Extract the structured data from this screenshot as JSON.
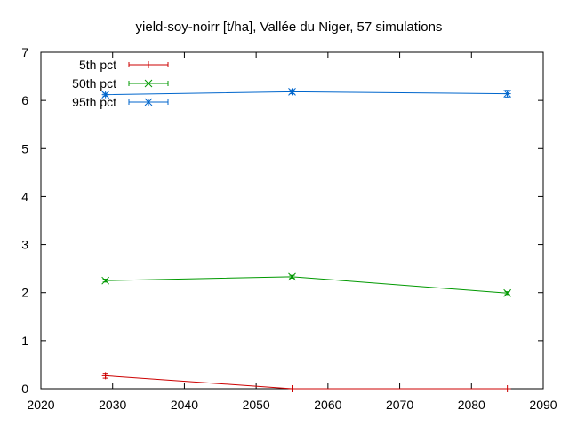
{
  "chart_data": {
    "type": "line",
    "title": "yield-soy-noirr [t/ha], Vallée du Niger, 57 simulations",
    "xlabel": "",
    "ylabel": "",
    "xlim": [
      2020,
      2090
    ],
    "ylim": [
      0,
      7
    ],
    "xticks": [
      2020,
      2030,
      2040,
      2050,
      2060,
      2070,
      2080,
      2090
    ],
    "yticks": [
      0,
      1,
      2,
      3,
      4,
      5,
      6,
      7
    ],
    "grid": false,
    "legend_position": "top-left",
    "series": [
      {
        "name": "5th pct",
        "color": "#cc0000",
        "marker": "plus",
        "points": [
          {
            "x": 2029,
            "y": 0.27,
            "err": 0.05
          },
          {
            "x": 2055,
            "y": 0.0,
            "err": 0.0
          },
          {
            "x": 2085,
            "y": 0.0,
            "err": 0.0
          }
        ]
      },
      {
        "name": "50th pct",
        "color": "#009900",
        "marker": "cross",
        "points": [
          {
            "x": 2029,
            "y": 2.25,
            "err": 0.03
          },
          {
            "x": 2055,
            "y": 2.33,
            "err": 0.03
          },
          {
            "x": 2085,
            "y": 1.99,
            "err": 0.03
          }
        ]
      },
      {
        "name": "95th pct",
        "color": "#0066cc",
        "marker": "star",
        "points": [
          {
            "x": 2029,
            "y": 6.12,
            "err": 0.03
          },
          {
            "x": 2055,
            "y": 6.18,
            "err": 0.04
          },
          {
            "x": 2085,
            "y": 6.14,
            "err": 0.07
          }
        ]
      }
    ]
  }
}
